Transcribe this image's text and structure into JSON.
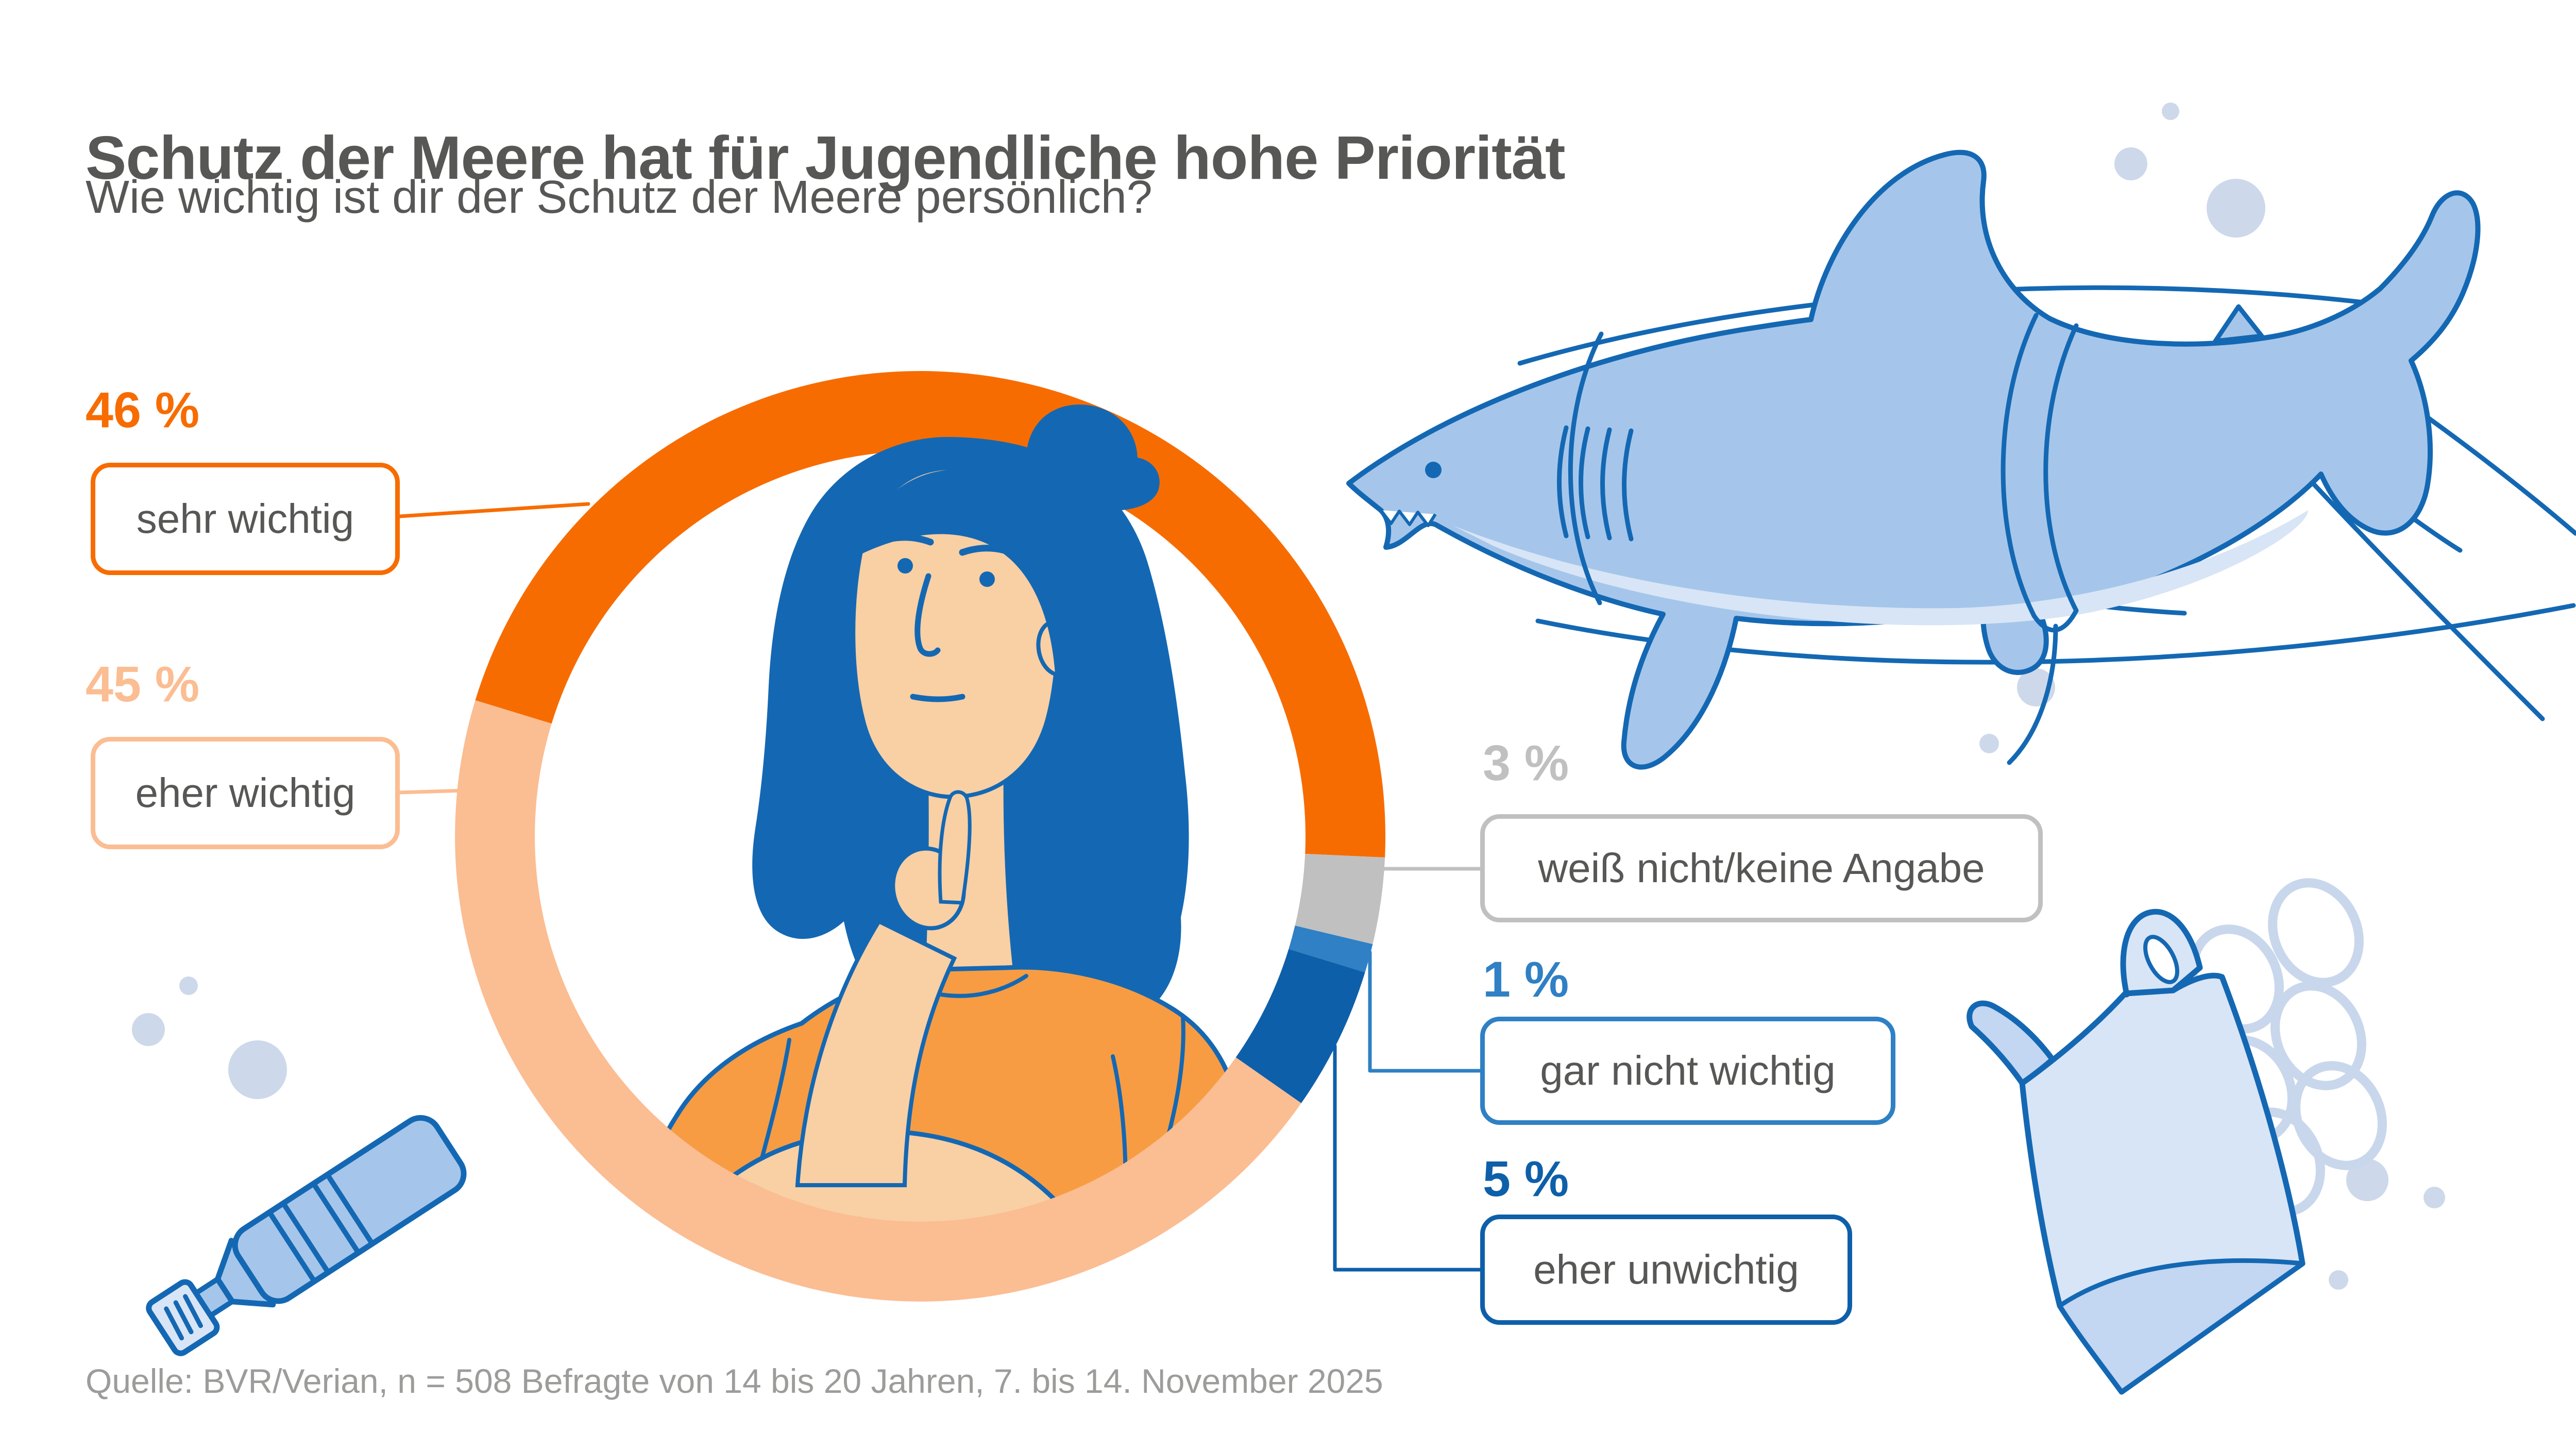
{
  "header": {
    "title": "Schutz der Meere hat für Jugendliche hohe Priorität",
    "subtitle": "Wie wichtig ist dir der Schutz der Meere persönlich?"
  },
  "source": "Quelle: BVR/Verian, n = 508 Befragte von 14 bis 20 Jahren, 7. bis 14. November 2025",
  "colors": {
    "background": "#FFFFFF",
    "heading_text": "#575756",
    "label_text": "#575756",
    "source_text": "#9C9C9B",
    "illustration_line": "#1468B3",
    "illustration_fill": "#A5C6EA",
    "illustration_fill_light": "#D8E5F6",
    "bubble_fill": "#CDD9EA",
    "rings_pale": "#C9D7EC",
    "skin": "#F9CFA4",
    "hair": "#1468B3",
    "shirt": "#F79C42"
  },
  "chart_data": {
    "type": "pie",
    "subtype": "donut",
    "title": "Schutz der Meere hat für Jugendliche hohe Priorität",
    "question": "Wie wichtig ist dir der Schutz der Meere persönlich?",
    "unit": "%",
    "start_angle_deg": 287,
    "direction": "clockwise",
    "grid": false,
    "legend_position": "callouts",
    "segments": [
      {
        "label": "sehr wichtig",
        "value": 46,
        "value_label": "46 %",
        "color": "#F76C00"
      },
      {
        "label": "weiß nicht/keine Angabe",
        "value": 3,
        "value_label": "3 %",
        "color": "#C0C0C0"
      },
      {
        "label": "gar nicht wichtig",
        "value": 1,
        "value_label": "1 %",
        "color": "#2F80C4"
      },
      {
        "label": "eher unwichtig",
        "value": 5,
        "value_label": "5 %",
        "color": "#0E5FA9"
      },
      {
        "label": "eher wichtig",
        "value": 45,
        "value_label": "45 %",
        "color": "#FBBD92"
      }
    ]
  },
  "illustrations": {
    "center": "thinking-teenager",
    "top_right": "shark-entangled-in-fishing-lines",
    "bottom_right": "plastic-bag-with-six-pack-rings",
    "bottom_left": "plastic-bottle",
    "decoration": "air-bubbles"
  }
}
